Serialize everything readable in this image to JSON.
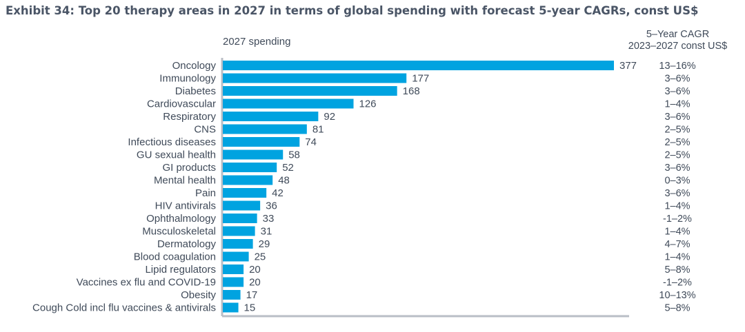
{
  "title": "Exhibit 34: Top 20 therapy areas in 2027 in terms of global spending with forecast 5-year CAGRs, const US$",
  "spending_header": "2027 spending",
  "cagr_header": [
    "5–Year CAGR",
    "2023–2027 const US$"
  ],
  "colors": {
    "bar": "#00a3e0",
    "axis": "#b9bec6",
    "text": "#3f4a59"
  },
  "chart_data": {
    "type": "bar",
    "orientation": "horizontal",
    "title": "Exhibit 34: Top 20 therapy areas in 2027 in terms of global spending with forecast 5-year CAGRs, const US$",
    "xlabel": "2027 spending",
    "ylabel": "",
    "xlim": [
      0,
      377
    ],
    "categories": [
      "Oncology",
      "Immunology",
      "Diabetes",
      "Cardiovascular",
      "Respiratory",
      "CNS",
      "Infectious diseases",
      "GU sexual health",
      "GI products",
      "Mental health",
      "Pain",
      "HIV antivirals",
      "Ophthalmology",
      "Musculoskeletal",
      "Dermatology",
      "Blood coagulation",
      "Lipid regulators",
      "Vaccines ex flu and COVID-19",
      "Obesity",
      "Cough Cold incl flu vaccines & antivirals"
    ],
    "values": [
      377,
      177,
      168,
      126,
      92,
      81,
      74,
      58,
      52,
      48,
      42,
      36,
      33,
      31,
      29,
      25,
      20,
      20,
      17,
      15
    ],
    "cagr": [
      "13–16%",
      "3–6%",
      "3–6%",
      "1–4%",
      "3–6%",
      "2–5%",
      "2–5%",
      "2–5%",
      "3–6%",
      "0–3%",
      "3–6%",
      "1–4%",
      "-1–2%",
      "1–4%",
      "4–7%",
      "1–4%",
      "5–8%",
      "-1–2%",
      "10–13%",
      "5–8%"
    ],
    "grid": false,
    "legend": "none"
  }
}
